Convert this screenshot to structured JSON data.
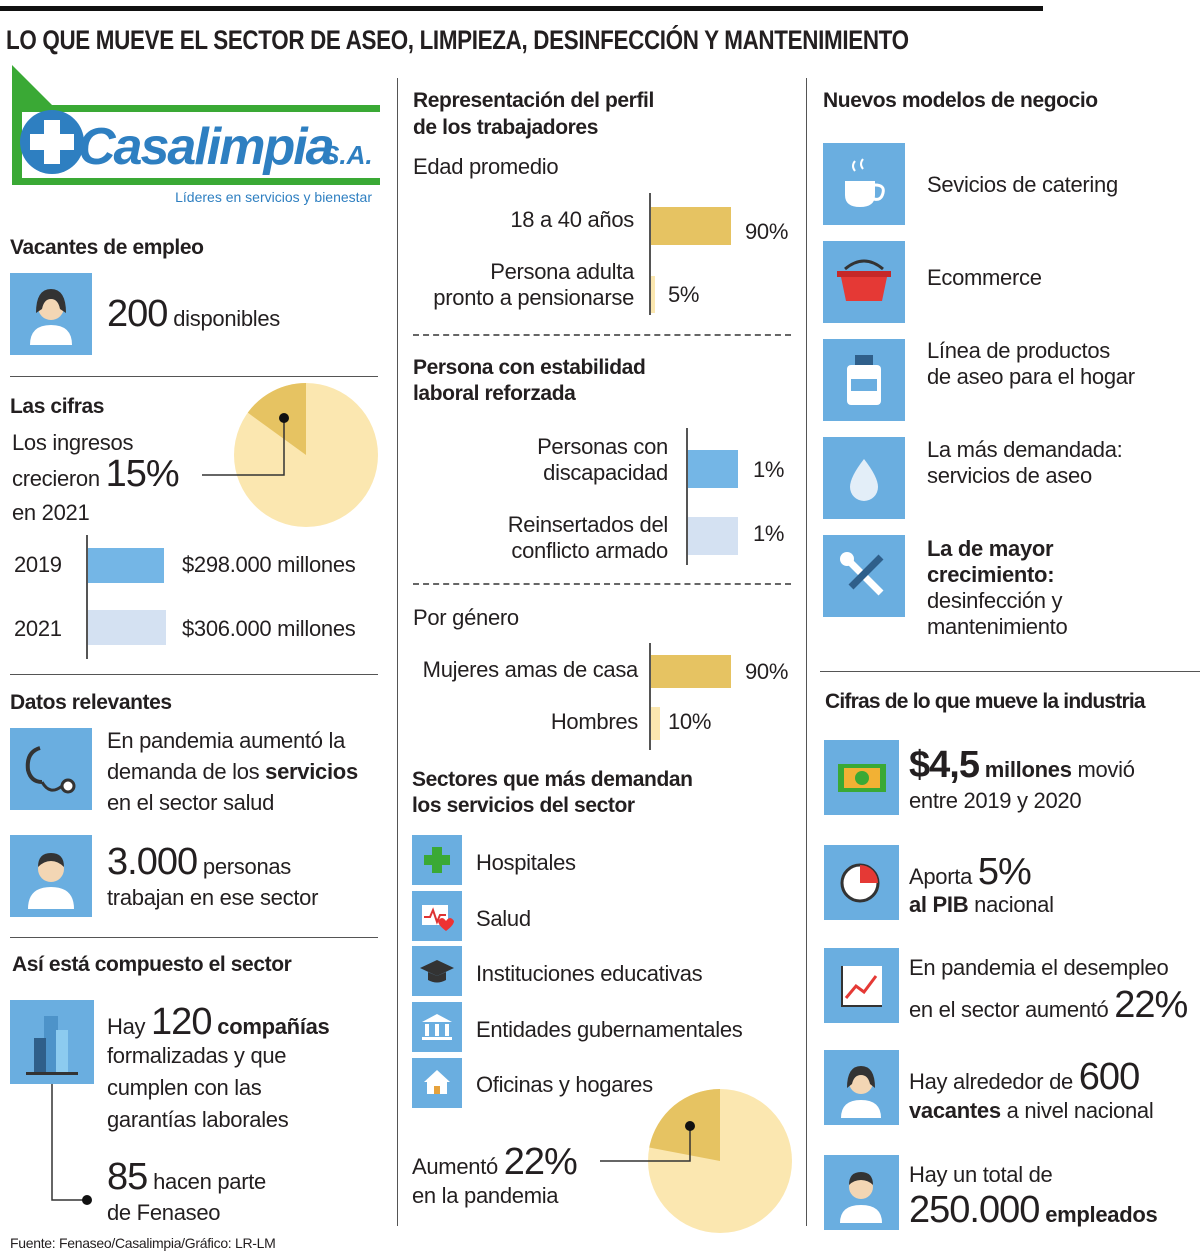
{
  "title": "LO QUE MUEVE EL SECTOR DE ASEO, LIMPIEZA, DESINFECCIÓN Y MANTENIMIENTO",
  "logo": {
    "name": "Casalimpia",
    "suffix": "S.A.",
    "tagline": "Líderes en servicios y bienestar"
  },
  "vacantes": {
    "title": "Vacantes de empleo",
    "number": "200",
    "text": "disponibles"
  },
  "cifras": {
    "title": "Las cifras",
    "line1": "Los ingresos",
    "line2": "crecieron",
    "growth": {
      "value": 15,
      "label": "15%"
    },
    "line3": "en 2021",
    "bars": [
      {
        "year": "2019",
        "value": 298000,
        "label": "$298.000 millones"
      },
      {
        "year": "2021",
        "value": 306000,
        "label": "$306.000 millones"
      }
    ]
  },
  "datos": {
    "title": "Datos relevantes",
    "salud": {
      "line1": "En pandemia aumentó la",
      "line2": "demanda de los",
      "bold": "servicios",
      "line3": "en el sector salud"
    },
    "personas": {
      "number": "3.000",
      "text": "personas",
      "line2": "trabajan en ese sector"
    }
  },
  "sector": {
    "title": "Así está compuesto el sector",
    "pre": "Hay",
    "number": "120",
    "bold": "compañías",
    "lines": [
      "formalizadas y que",
      "cumplen con las",
      "garantías laborales"
    ],
    "fenaseo": {
      "number": "85",
      "text": "hacen parte",
      "line2": "de Fenaseo"
    }
  },
  "perfil": {
    "title": [
      "Representación del perfil",
      "de los trabajadores"
    ],
    "edad": {
      "title": "Edad promedio",
      "bars": [
        {
          "label": [
            "18 a 40 años"
          ],
          "value": 90,
          "value_label": "90%"
        },
        {
          "label": [
            "Persona adulta",
            "pronto a pensionarse"
          ],
          "value": 5,
          "value_label": "5%"
        }
      ]
    },
    "estabilidad": {
      "title": [
        "Persona con estabilidad",
        "laboral reforzada"
      ],
      "bars": [
        {
          "label": [
            "Personas con",
            "discapacidad"
          ],
          "value": 1,
          "value_label": "1%"
        },
        {
          "label": [
            "Reinsertados del",
            "conflicto armado"
          ],
          "value": 1,
          "value_label": "1%"
        }
      ]
    },
    "genero": {
      "title": "Por género",
      "bars": [
        {
          "label": [
            "Mujeres amas de casa"
          ],
          "value": 90,
          "value_label": "90%"
        },
        {
          "label": [
            "Hombres"
          ],
          "value": 10,
          "value_label": "10%"
        }
      ]
    }
  },
  "sectores": {
    "title": [
      "Sectores que más demandan",
      "los servicios del sector"
    ],
    "items": [
      "Hospitales",
      "Salud",
      "Instituciones educativas",
      "Entidades gubernamentales",
      "Oficinas y hogares"
    ],
    "growth": {
      "pre": "Aumentó",
      "value": 22,
      "label": "22%",
      "line2": "en la pandemia"
    }
  },
  "modelos": {
    "title": "Nuevos modelos de negocio",
    "items": [
      [
        "Sevicios de catering"
      ],
      [
        "Ecommerce"
      ],
      [
        "Línea de productos",
        "de aseo para el hogar"
      ],
      [
        "La más demandada:",
        "servicios de aseo"
      ],
      [
        "La de mayor",
        "crecimiento:",
        "desinfección y",
        "mantenimiento"
      ]
    ]
  },
  "industria": {
    "title": "Cifras de lo que mueve la industria",
    "movio": {
      "number": "$4,5",
      "bold": "millones",
      "text": "movió",
      "line2": "entre 2019 y 2020"
    },
    "pib": {
      "pre": "Aporta",
      "number": "5%",
      "bold": "al PIB",
      "text": "nacional"
    },
    "desempleo": {
      "line1": "En pandemia el desempleo",
      "line2": "en el sector aumentó",
      "number": "22%"
    },
    "vacantes": {
      "pre": "Hay alrededor de",
      "number": "600",
      "bold": "vacantes",
      "text": "a nivel nacional"
    },
    "empleados": {
      "line1": "Hay un total de",
      "number": "250.000",
      "bold": "empleados"
    }
  },
  "source": "Fuente: Fenaseo/Casalimpia/Gráfico: LR-LM"
}
